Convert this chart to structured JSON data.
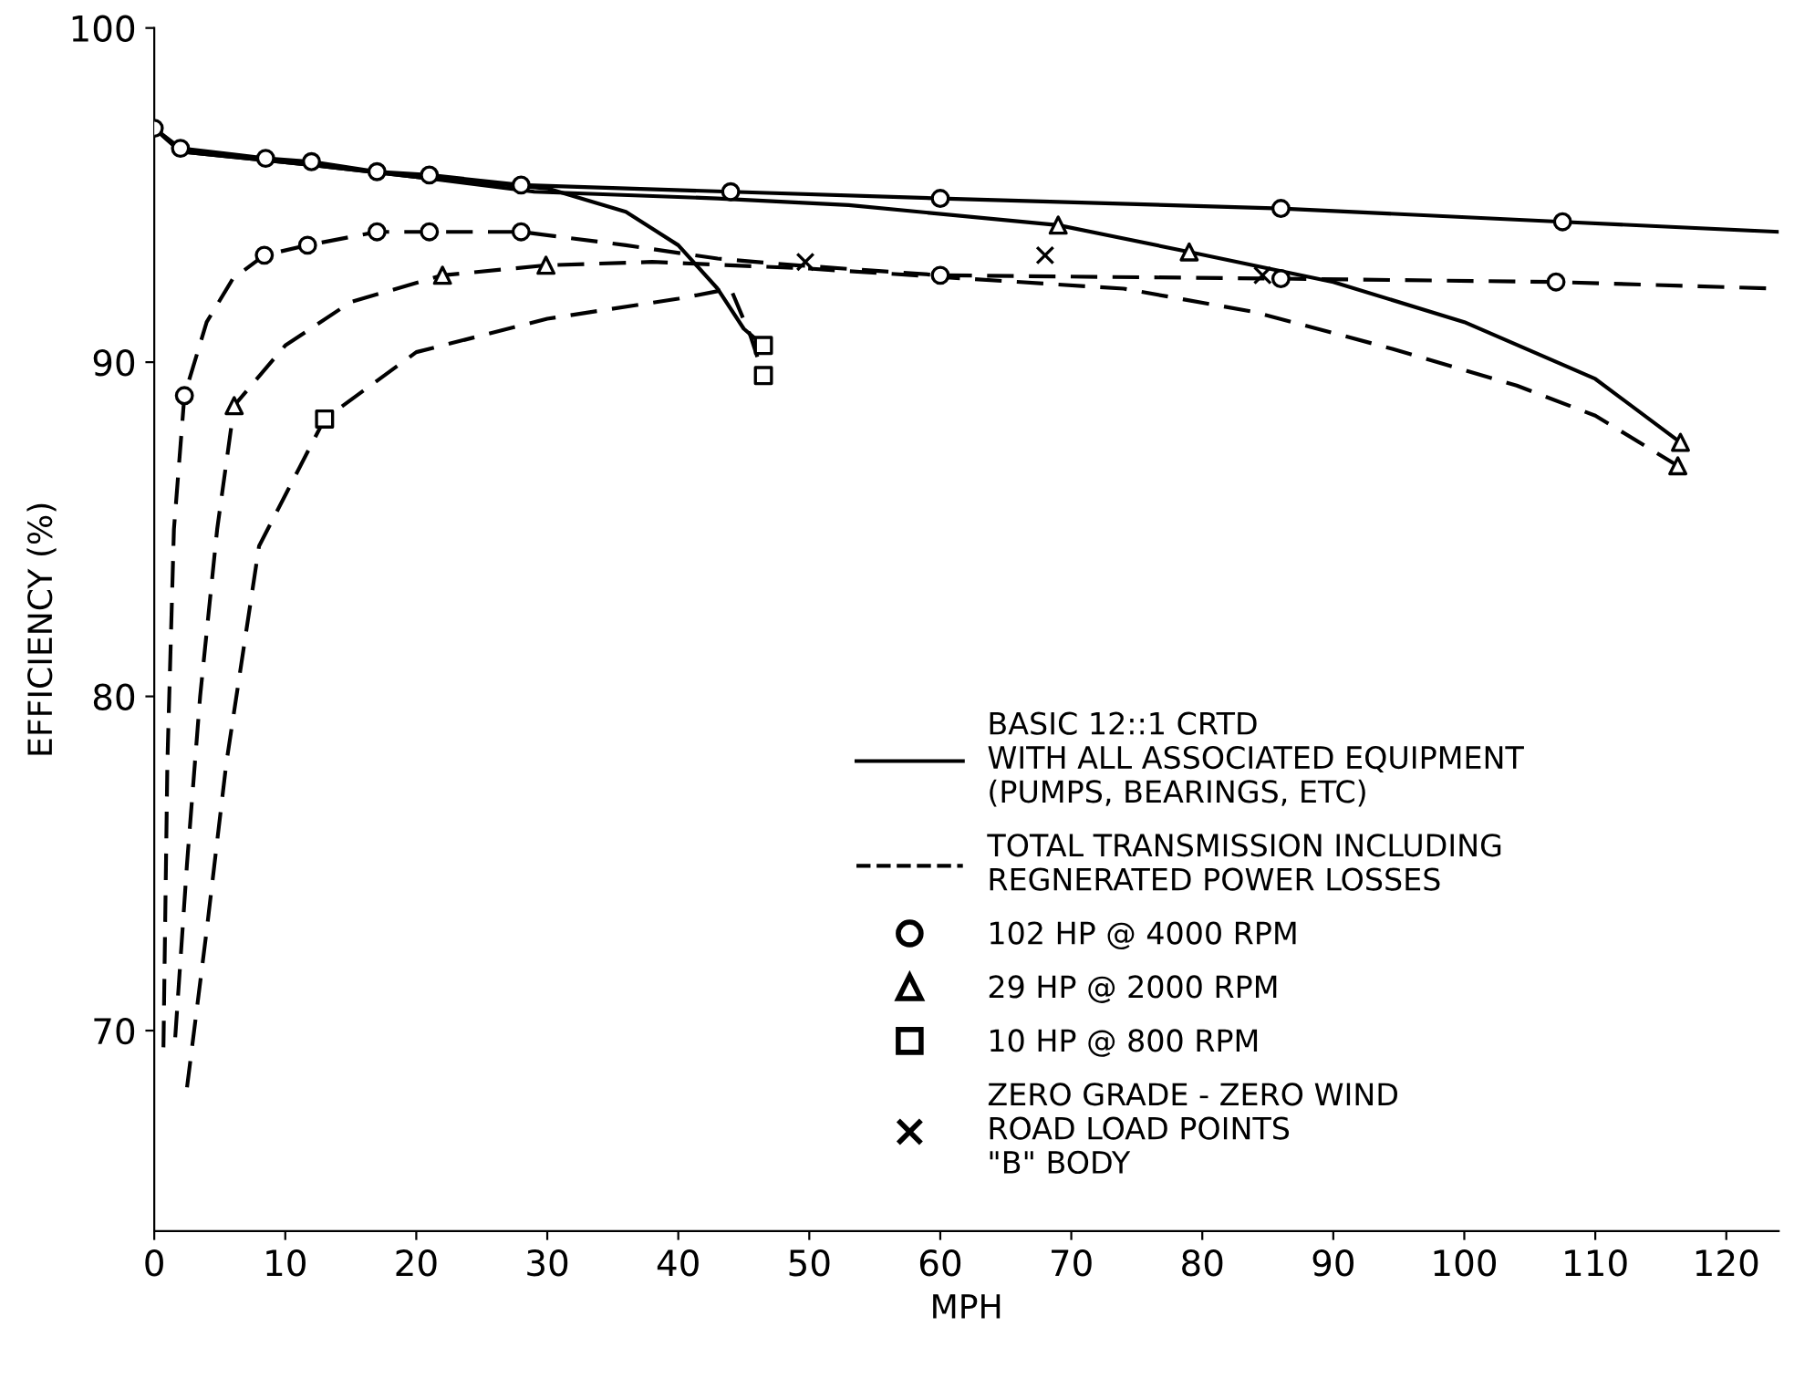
{
  "chart_data": {
    "type": "line",
    "xlabel": "MPH",
    "ylabel": "EFFICIENCY (%)",
    "xlim": [
      0,
      124
    ],
    "xticks": [
      0,
      10,
      20,
      30,
      40,
      50,
      60,
      70,
      80,
      90,
      100,
      110,
      120
    ],
    "ylim": [
      64,
      100
    ],
    "yticks": [
      70,
      80,
      90,
      100
    ],
    "grid": false,
    "legend": "bottom right",
    "series": [
      {
        "name": "BASIC 12::1 CRTD\nWITH ALL ASSOCIATED EQUIPMENT\n(PUMPS, BEARINGS, ETC)",
        "color": "#000000",
        "line_style": "solid",
        "marker": "none",
        "x": [
          0,
          2,
          8.5,
          12,
          17,
          21,
          28,
          44,
          60,
          86,
          107.5,
          124
        ],
        "values": [
          97.0,
          96.4,
          96.1,
          96.0,
          95.7,
          95.6,
          95.3,
          95.1,
          94.9,
          94.6,
          94.2,
          93.9
        ]
      },
      {
        "color": "#000000",
        "line_style": "solid",
        "marker": "none",
        "x": [
          0,
          2,
          12,
          21,
          29,
          43,
          53,
          69,
          79,
          90,
          100,
          110,
          116.5
        ],
        "values": [
          97.0,
          96.3,
          95.9,
          95.5,
          95.1,
          94.9,
          94.7,
          94.1,
          93.3,
          92.4,
          91.2,
          89.5,
          87.6
        ]
      },
      {
        "color": "#000000",
        "line_style": "solid",
        "marker": "none",
        "x": [
          0,
          2,
          12,
          21,
          30,
          36,
          40,
          43,
          45,
          46.5
        ],
        "values": [
          97.0,
          96.3,
          95.9,
          95.5,
          95.2,
          94.5,
          93.5,
          92.2,
          91.0,
          90.5
        ]
      },
      {
        "name": "TOTAL TRANSMISSION INCLUDING\nREGNERATED POWER LOSSES",
        "color": "#000000",
        "line_style": "dashed",
        "marker": "none",
        "x": [
          0.7,
          1,
          1.5,
          2.3,
          4,
          6,
          8.4,
          11.7,
          17,
          21,
          28,
          36,
          43,
          49,
          60,
          86,
          107,
          124
        ],
        "values": [
          69.5,
          78,
          85,
          89.0,
          91.2,
          92.5,
          93.2,
          93.5,
          93.9,
          93.9,
          93.9,
          93.5,
          93.1,
          92.9,
          92.6,
          92.5,
          92.4,
          92.2
        ]
      },
      {
        "color": "#000000",
        "line_style": "dashed",
        "marker": "none",
        "x": [
          1.6,
          2.5,
          3.5,
          4.8,
          6.1,
          10,
          15,
          22,
          29.9,
          38,
          50,
          62,
          74,
          84,
          94.5,
          104,
          110,
          116.3
        ],
        "values": [
          69.8,
          75,
          80,
          85,
          88.7,
          90.5,
          91.8,
          92.6,
          92.9,
          93.0,
          92.8,
          92.5,
          92.2,
          91.5,
          90.4,
          89.3,
          88.4,
          86.9
        ]
      },
      {
        "color": "#000000",
        "line_style": "dashed",
        "marker": "none",
        "x": [
          2.5,
          4,
          5.5,
          8,
          13,
          20,
          30,
          40,
          44,
          45.5,
          46.5
        ],
        "values": [
          68.3,
          73,
          78,
          84.5,
          88.3,
          90.3,
          91.3,
          91.9,
          92.2,
          90.8,
          89.6
        ]
      },
      {
        "type": "scatter",
        "name": "102 HP @ 4000 RPM",
        "color": "#000000",
        "marker": "circle",
        "x": [
          0,
          2,
          8.5,
          12,
          17,
          21,
          28,
          44,
          60,
          86,
          107.5,
          2.3,
          8.4,
          11.7,
          17,
          21,
          28,
          60,
          86,
          107
        ],
        "values": [
          97.0,
          96.4,
          96.1,
          96.0,
          95.7,
          95.6,
          95.3,
          95.1,
          94.9,
          94.6,
          94.2,
          89.0,
          93.2,
          93.5,
          93.9,
          93.9,
          93.9,
          92.6,
          92.5,
          92.4
        ]
      },
      {
        "type": "scatter",
        "name": "29 HP @ 2000 RPM",
        "color": "#000000",
        "marker": "triangle",
        "x": [
          69,
          79,
          116.5,
          6.1,
          22,
          29.9,
          116.3
        ],
        "values": [
          94.1,
          93.3,
          87.6,
          88.7,
          92.6,
          92.9,
          86.9
        ]
      },
      {
        "type": "scatter",
        "name": "10 HP @ 800 RPM",
        "color": "#000000",
        "marker": "square",
        "x": [
          46.5,
          13,
          46.5
        ],
        "values": [
          90.5,
          88.3,
          89.6
        ]
      },
      {
        "type": "scatter",
        "name": "ZERO GRADE - ZERO WIND\nROAD LOAD POINTS\n\"B\" BODY",
        "color": "#000000",
        "marker": "cross",
        "x": [
          49.7,
          68,
          84.6
        ],
        "values": [
          93.0,
          93.2,
          92.6
        ]
      }
    ]
  }
}
